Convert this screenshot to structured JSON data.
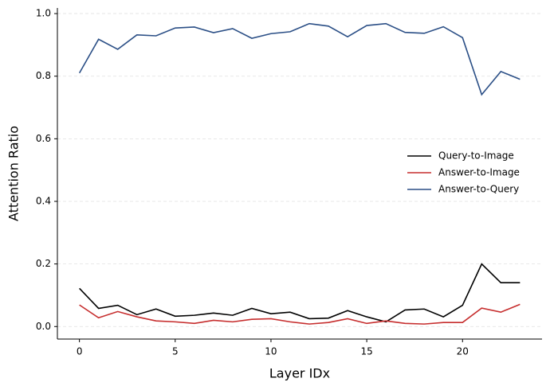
{
  "chart_data": {
    "type": "line",
    "x_label": "Layer IDx",
    "y_label": "Attention Ratio",
    "x": [
      0,
      1,
      2,
      3,
      4,
      5,
      6,
      7,
      8,
      9,
      10,
      11,
      12,
      13,
      14,
      15,
      16,
      17,
      18,
      19,
      20,
      21,
      22,
      23
    ],
    "series": [
      {
        "name": "Query-to-Image",
        "color": "#000000",
        "values": [
          0.122,
          0.058,
          0.068,
          0.038,
          0.056,
          0.033,
          0.036,
          0.043,
          0.036,
          0.058,
          0.041,
          0.046,
          0.025,
          0.027,
          0.051,
          0.031,
          0.015,
          0.053,
          0.056,
          0.031,
          0.068,
          0.2,
          0.14,
          0.14
        ]
      },
      {
        "name": "Answer-to-Image",
        "color": "#c62d2d",
        "values": [
          0.069,
          0.028,
          0.048,
          0.031,
          0.018,
          0.015,
          0.01,
          0.02,
          0.015,
          0.023,
          0.025,
          0.015,
          0.008,
          0.013,
          0.025,
          0.01,
          0.018,
          0.01,
          0.008,
          0.013,
          0.013,
          0.059,
          0.046,
          0.071
        ]
      },
      {
        "name": "Answer-to-Query",
        "color": "#2b4f86",
        "values": [
          0.81,
          0.918,
          0.886,
          0.932,
          0.929,
          0.954,
          0.957,
          0.939,
          0.952,
          0.921,
          0.936,
          0.942,
          0.968,
          0.96,
          0.926,
          0.962,
          0.968,
          0.94,
          0.937,
          0.958,
          0.923,
          0.741,
          0.815,
          0.79
        ]
      }
    ],
    "xlim": [
      -1.15,
      24.15
    ],
    "xticks": [
      0,
      5,
      10,
      15,
      20
    ],
    "ylim": [
      -0.04,
      1.018
    ],
    "yticks": [
      {
        "value": 0,
        "label": "0.0"
      },
      {
        "value": 0.2,
        "label": "0.2"
      },
      {
        "value": 0.4,
        "label": "0.4"
      },
      {
        "value": 0.6,
        "label": "0.6"
      },
      {
        "value": 0.8,
        "label": "0.8"
      },
      {
        "value": 1,
        "label": "1.0"
      }
    ],
    "grid": true,
    "legend": "center right"
  }
}
